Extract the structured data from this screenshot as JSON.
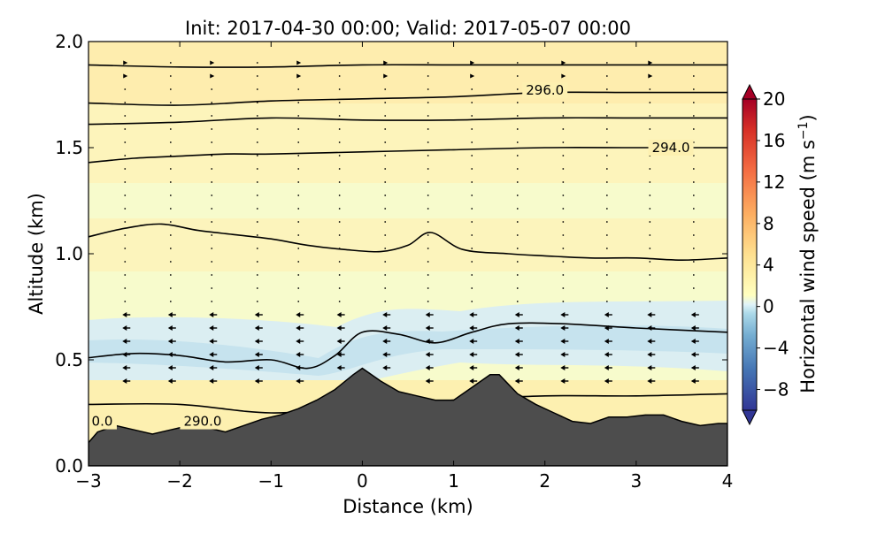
{
  "chart_data": {
    "type": "heatmap",
    "title": "Init: 2017-04-30 00:00; Valid: 2017-05-07 00:00",
    "xlabel": "Distance (km)",
    "ylabel": "Altitude (km)",
    "xlim": [
      -3,
      4
    ],
    "ylim": [
      0.0,
      2.0
    ],
    "x_ticks": [
      -3,
      -2,
      -1,
      0,
      1,
      2,
      3,
      4
    ],
    "x_tick_labels": [
      "−3",
      "−2",
      "−1",
      "0",
      "1",
      "2",
      "3",
      "4"
    ],
    "y_ticks": [
      0.0,
      0.5,
      1.0,
      1.5,
      2.0
    ],
    "y_tick_labels": [
      "0.0",
      "0.5",
      "1.0",
      "1.5",
      "2.0"
    ],
    "colorbar": {
      "label": "Horizontal wind speed (m s",
      "label_superscript": "−1",
      "label_suffix": ")",
      "range": [
        -10,
        20
      ],
      "ticks": [
        -8,
        -4,
        0,
        4,
        8,
        12,
        16,
        20
      ],
      "tick_labels": [
        "−8",
        "−4",
        "0",
        "4",
        "8",
        "12",
        "16",
        "20"
      ],
      "colormap": "RdYlBu_r",
      "extend": "both"
    },
    "contour_labels": [
      {
        "text": "296.0",
        "x": 2.0,
        "y": 1.77
      },
      {
        "text": "294.0",
        "x": 3.38,
        "y": 1.5
      },
      {
        "text": "290.0",
        "x": -1.75,
        "y": 0.21
      },
      {
        "text": "0.0",
        "x": -2.85,
        "y": 0.21
      }
    ],
    "terrain_km": {
      "x": [
        -3,
        -2.9,
        -2.7,
        -2.5,
        -2.3,
        -2.1,
        -1.9,
        -1.7,
        -1.5,
        -1.3,
        -1.1,
        -0.9,
        -0.7,
        -0.5,
        -0.3,
        -0.1,
        0,
        0.2,
        0.4,
        0.6,
        0.8,
        1.0,
        1.2,
        1.4,
        1.5,
        1.7,
        1.9,
        2.1,
        2.3,
        2.5,
        2.7,
        2.9,
        3.1,
        3.3,
        3.5,
        3.7,
        3.9,
        4
      ],
      "y": [
        0.11,
        0.16,
        0.19,
        0.17,
        0.15,
        0.17,
        0.19,
        0.18,
        0.16,
        0.19,
        0.22,
        0.24,
        0.27,
        0.31,
        0.36,
        0.43,
        0.46,
        0.4,
        0.35,
        0.33,
        0.31,
        0.31,
        0.37,
        0.43,
        0.43,
        0.34,
        0.29,
        0.25,
        0.21,
        0.2,
        0.23,
        0.23,
        0.24,
        0.24,
        0.21,
        0.19,
        0.2,
        0.2
      ]
    },
    "theta_contours": [
      {
        "x": [
          -3,
          -2,
          -1,
          0,
          1,
          2,
          3,
          4
        ],
        "y": [
          0.29,
          0.29,
          0.25,
          0.28,
          0.31,
          0.33,
          0.33,
          0.34
        ]
      },
      {
        "x": [
          -3,
          -2.5,
          -2,
          -1.5,
          -1,
          -0.6,
          -0.3,
          0,
          0.4,
          0.8,
          1.2,
          1.6,
          2.2,
          3,
          4
        ],
        "y": [
          0.51,
          0.53,
          0.52,
          0.49,
          0.5,
          0.46,
          0.52,
          0.63,
          0.62,
          0.58,
          0.63,
          0.67,
          0.67,
          0.65,
          0.63
        ]
      },
      {
        "x": [
          -3,
          -2.6,
          -2.2,
          -1.8,
          -1.4,
          -1,
          -0.6,
          -0.2,
          0.2,
          0.5,
          0.75,
          1.1,
          1.6,
          2,
          2.5,
          3,
          3.5,
          4
        ],
        "y": [
          1.08,
          1.12,
          1.14,
          1.11,
          1.09,
          1.07,
          1.04,
          1.02,
          1.01,
          1.04,
          1.1,
          1.02,
          1.0,
          0.99,
          0.98,
          0.98,
          0.97,
          0.98
        ]
      },
      {
        "x": [
          -3,
          -2.5,
          -2,
          -1.5,
          -1,
          0,
          1,
          2,
          3,
          4
        ],
        "y": [
          1.43,
          1.45,
          1.46,
          1.47,
          1.47,
          1.48,
          1.49,
          1.5,
          1.5,
          1.5
        ]
      },
      {
        "x": [
          -3,
          -2,
          -1,
          0,
          1,
          2,
          3,
          4
        ],
        "y": [
          1.61,
          1.62,
          1.64,
          1.63,
          1.63,
          1.64,
          1.64,
          1.64
        ]
      },
      {
        "x": [
          -3,
          -2,
          -1,
          0,
          1,
          2,
          3,
          4
        ],
        "y": [
          1.71,
          1.7,
          1.72,
          1.73,
          1.74,
          1.76,
          1.76,
          1.76
        ]
      },
      {
        "x": [
          -3,
          -2,
          -1,
          0,
          1,
          2,
          3,
          4
        ],
        "y": [
          1.89,
          1.88,
          1.88,
          1.89,
          1.89,
          1.89,
          1.89,
          1.89
        ]
      }
    ],
    "wind_columns_x": [
      -2.6,
      -2.1,
      -1.65,
      -1.15,
      -0.7,
      -0.25,
      0.25,
      0.72,
      1.2,
      1.7,
      2.2,
      2.68,
      3.15,
      3.63
    ]
  }
}
